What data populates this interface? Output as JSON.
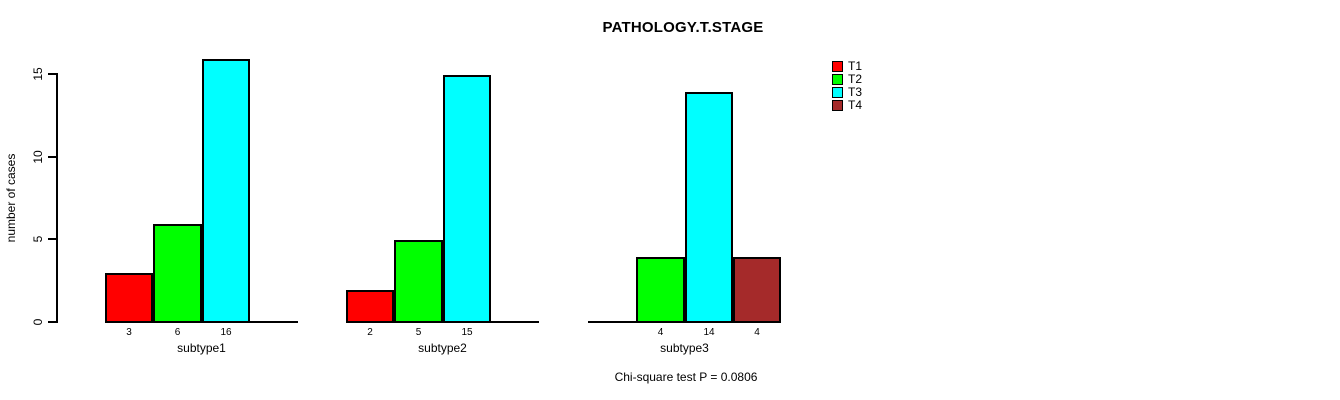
{
  "title": "PATHOLOGY.T.STAGE",
  "footer": "Chi-square test P = 0.0806",
  "y_axis": {
    "label": "number of cases",
    "ticks": [
      "0",
      "5",
      "10",
      "15"
    ]
  },
  "legend": {
    "items": [
      {
        "label": "T1",
        "color": "#FF0000"
      },
      {
        "label": "T2",
        "color": "#00FF00"
      },
      {
        "label": "T3",
        "color": "#00FFFF"
      },
      {
        "label": "T4",
        "color": "#A52A2A"
      }
    ]
  },
  "chart_data": {
    "type": "bar",
    "title": "PATHOLOGY.T.STAGE",
    "xlabel": "",
    "ylabel": "number of cases",
    "categories": [
      "subtype1",
      "subtype2",
      "subtype3"
    ],
    "series": [
      {
        "name": "T1",
        "color": "#FF0000",
        "values": [
          3,
          2,
          0
        ]
      },
      {
        "name": "T2",
        "color": "#00FF00",
        "values": [
          6,
          5,
          4
        ]
      },
      {
        "name": "T3",
        "color": "#00FFFF",
        "values": [
          16,
          15,
          14
        ]
      },
      {
        "name": "T4",
        "color": "#A52A2A",
        "values": [
          0,
          0,
          4
        ]
      }
    ],
    "ylim": [
      0,
      16
    ],
    "y_ticks": [
      0,
      5,
      10,
      15
    ],
    "bar_value_labels": true,
    "zero_bars_hidden": true,
    "grid": false,
    "legend_position": "top-right",
    "annotation": "Chi-square test P = 0.0806"
  }
}
